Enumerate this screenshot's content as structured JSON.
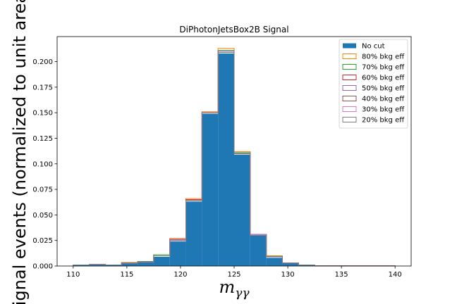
{
  "chart_data": {
    "type": "histogram",
    "title": "DiPhotonJetsBox2B Signal",
    "xlabel_base": "m",
    "xlabel_sub": "γγ",
    "ylabel": "Signal events (normalized to unit area)",
    "xlim": [
      108.5,
      141.5
    ],
    "ylim": [
      0,
      0.2245
    ],
    "bin_edges": [
      110,
      111.5,
      113,
      114.5,
      116,
      117.5,
      119,
      120.5,
      122,
      123.5,
      125,
      126.5,
      128,
      129.5,
      131,
      132.5,
      134,
      135.5,
      137,
      138.5,
      140
    ],
    "x_ticks": [
      110,
      115,
      120,
      125,
      130,
      135,
      140
    ],
    "y_ticks": [
      0.0,
      0.025,
      0.05,
      0.075,
      0.1,
      0.125,
      0.15,
      0.175,
      0.2
    ],
    "y_tick_labels": [
      "0.000",
      "0.025",
      "0.050",
      "0.075",
      "0.100",
      "0.125",
      "0.150",
      "0.175",
      "0.200"
    ],
    "legend_position": "upper right",
    "series": [
      {
        "name": "No cut",
        "style": "filled",
        "color": "#1f77b4",
        "values": [
          0.001,
          0.0015,
          0.001,
          0.0025,
          0.0035,
          0.009,
          0.024,
          0.063,
          0.149,
          0.208,
          0.109,
          0.03,
          0.008,
          0.003,
          0.001,
          0.0003,
          0.0002,
          0.0001,
          0.0001,
          0.0001
        ]
      },
      {
        "name": "80% bkg eff",
        "style": "step",
        "color": "#ff7f0e",
        "values": [
          0.001,
          0.0015,
          0.001,
          0.0035,
          0.0045,
          0.011,
          0.027,
          0.066,
          0.151,
          0.213,
          0.112,
          0.031,
          0.01,
          0.003,
          0.001,
          0.0003,
          0.0002,
          0.0001,
          0.0001,
          0.0001
        ]
      },
      {
        "name": "70% bkg eff",
        "style": "step",
        "color": "#2ca02c",
        "values": [
          0.001,
          0.0015,
          0.001,
          0.003,
          0.0045,
          0.011,
          0.026,
          0.065,
          0.15,
          0.211,
          0.111,
          0.031,
          0.0095,
          0.003,
          0.001,
          0.0003,
          0.0002,
          0.0001,
          0.0001,
          0.0001
        ]
      },
      {
        "name": "60% bkg eff",
        "style": "step",
        "color": "#d62728",
        "values": [
          0.001,
          0.0015,
          0.001,
          0.003,
          0.004,
          0.01,
          0.026,
          0.065,
          0.15,
          0.21,
          0.11,
          0.031,
          0.009,
          0.003,
          0.001,
          0.0003,
          0.0002,
          0.0001,
          0.0001,
          0.0001
        ]
      },
      {
        "name": "50% bkg eff",
        "style": "step",
        "color": "#9467bd",
        "values": [
          0.001,
          0.0015,
          0.001,
          0.003,
          0.004,
          0.01,
          0.026,
          0.064,
          0.15,
          0.21,
          0.11,
          0.031,
          0.009,
          0.003,
          0.001,
          0.0003,
          0.0002,
          0.0001,
          0.0001,
          0.0001
        ]
      },
      {
        "name": "40% bkg eff",
        "style": "step",
        "color": "#8c564b",
        "values": [
          0.001,
          0.0015,
          0.001,
          0.003,
          0.004,
          0.01,
          0.025,
          0.064,
          0.15,
          0.209,
          0.11,
          0.03,
          0.009,
          0.003,
          0.001,
          0.0003,
          0.0002,
          0.0001,
          0.0001,
          0.0001
        ]
      },
      {
        "name": "30% bkg eff",
        "style": "step",
        "color": "#e377c2",
        "values": [
          0.001,
          0.0015,
          0.001,
          0.003,
          0.004,
          0.01,
          0.025,
          0.064,
          0.15,
          0.209,
          0.11,
          0.03,
          0.009,
          0.003,
          0.001,
          0.0003,
          0.0002,
          0.0001,
          0.0001,
          0.0001
        ]
      },
      {
        "name": "20% bkg eff",
        "style": "step",
        "color": "#7f7f7f",
        "values": [
          0.001,
          0.0015,
          0.001,
          0.003,
          0.004,
          0.01,
          0.025,
          0.064,
          0.15,
          0.209,
          0.11,
          0.03,
          0.009,
          0.003,
          0.001,
          0.0003,
          0.0002,
          0.0001,
          0.0001,
          0.0001
        ]
      }
    ]
  }
}
